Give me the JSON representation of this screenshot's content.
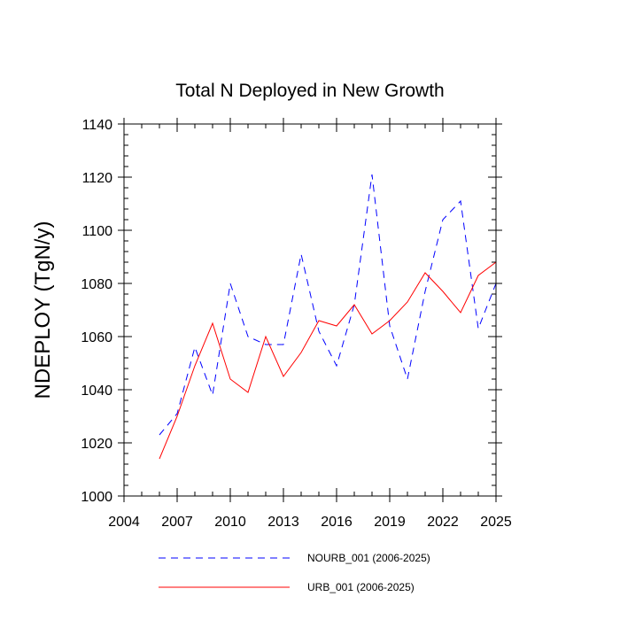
{
  "chart_data": {
    "type": "line",
    "title": "Total N Deployed in New Growth",
    "xlabel": "",
    "ylabel": "NDEPLOY  (TgN/y)",
    "xlim": [
      2004,
      2025
    ],
    "ylim": [
      1000,
      1140
    ],
    "xticks": [
      2004,
      2007,
      2010,
      2013,
      2016,
      2019,
      2022,
      2025
    ],
    "yticks": [
      1000,
      1020,
      1040,
      1060,
      1080,
      1100,
      1120,
      1140
    ],
    "x": [
      2006,
      2007,
      2008,
      2009,
      2010,
      2011,
      2012,
      2013,
      2014,
      2015,
      2016,
      2017,
      2018,
      2019,
      2020,
      2021,
      2022,
      2023,
      2024,
      2025
    ],
    "series": [
      {
        "name": "NOURB_001 (2006-2025)",
        "color": "#0000ff",
        "style": "dashed",
        "values": [
          1023,
          1031,
          1056,
          1038,
          1080,
          1060,
          1057,
          1057,
          1091,
          1062,
          1049,
          1072,
          1121,
          1064,
          1044,
          1077,
          1104,
          1111,
          1063,
          1080
        ]
      },
      {
        "name": "URB_001 (2006-2025)",
        "color": "#ff0000",
        "style": "solid",
        "values": [
          1014,
          1030,
          1049,
          1065,
          1044,
          1039,
          1060,
          1045,
          1054,
          1066,
          1064,
          1072,
          1061,
          1066,
          1073,
          1084,
          1077,
          1069,
          1083,
          1088
        ]
      }
    ]
  }
}
